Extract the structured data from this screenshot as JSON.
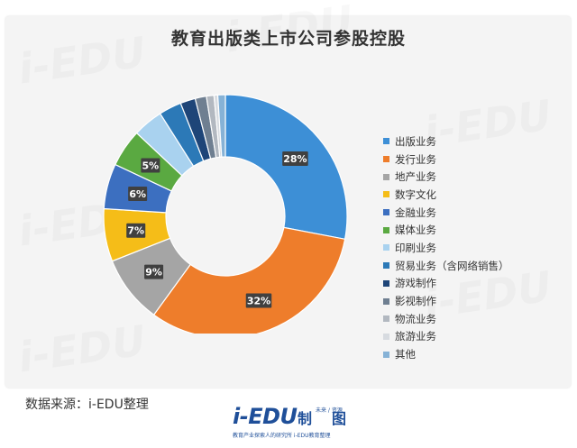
{
  "chart_data": {
    "type": "pie",
    "title": "教育出版类上市公司参股控股",
    "donut": true,
    "legend_position": "right",
    "categories": [
      "出版业务",
      "发行业务",
      "地产业务",
      "数字文化",
      "金融业务",
      "媒体业务",
      "印刷业务",
      "贸易业务（含网络销售）",
      "游戏制作",
      "影视制作",
      "物流业务",
      "旅游业务",
      "其他"
    ],
    "values": [
      28,
      32,
      9,
      7,
      6,
      5,
      4,
      3,
      2,
      1.5,
      1,
      0.5,
      1
    ],
    "data_labels": [
      "28%",
      "32%",
      "9%",
      "7%",
      "6%",
      "5%",
      "",
      "",
      "",
      "",
      "",
      "",
      ""
    ],
    "colors": [
      "#3d8fd6",
      "#ee7d2b",
      "#a5a5a5",
      "#f5bd18",
      "#3c6fc0",
      "#5aa941",
      "#a9d2ef",
      "#2c79b7",
      "#1e4578",
      "#6f7f91",
      "#b2b8c0",
      "#d7dbe0",
      "#86b2d6"
    ]
  },
  "source_label": "数据来源：i-EDU整理",
  "logo": {
    "brand": "i-EDU",
    "mark": "制",
    "mark2": "图",
    "small": "未来 / 资源",
    "sub": "教育产业探索人的研究所  i-EDU教育整理"
  },
  "watermark": "i-EDU"
}
